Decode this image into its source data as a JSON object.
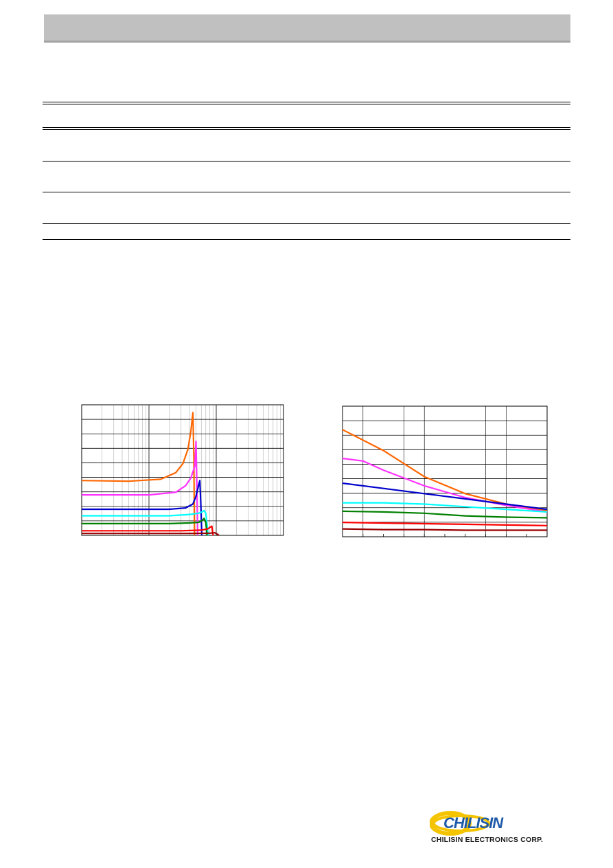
{
  "page": {
    "company_name": "CHILISIN ELECTRONICS CORP.",
    "logo_text": "CHILISIN"
  },
  "chart_data": [
    {
      "type": "line",
      "xscale": "log",
      "grid": true,
      "series": [
        {
          "color": "#ff6600",
          "x": [
            1,
            5,
            15,
            25,
            32,
            38,
            42,
            45,
            46.5,
            47.5
          ],
          "y": [
            0.42,
            0.415,
            0.43,
            0.48,
            0.55,
            0.66,
            0.8,
            0.94,
            0.6,
            0.0
          ]
        },
        {
          "color": "#ff33ff",
          "x": [
            1,
            10,
            25,
            35,
            42,
            48,
            50,
            51.5,
            53
          ],
          "y": [
            0.31,
            0.31,
            0.33,
            0.38,
            0.44,
            0.53,
            0.72,
            0.4,
            0.0
          ]
        },
        {
          "color": "#0000cc",
          "x": [
            1,
            20,
            35,
            45,
            50,
            55,
            57,
            59,
            61
          ],
          "y": [
            0.2,
            0.2,
            0.21,
            0.24,
            0.3,
            0.39,
            0.42,
            0.25,
            0.0
          ]
        },
        {
          "color": "#00ffff",
          "x": [
            1,
            20,
            40,
            55,
            62,
            66,
            70,
            73,
            76
          ],
          "y": [
            0.15,
            0.15,
            0.16,
            0.17,
            0.18,
            0.19,
            0.17,
            0.08,
            0.0
          ]
        },
        {
          "color": "#008000",
          "x": [
            1,
            20,
            40,
            55,
            62,
            66,
            70,
            73
          ],
          "y": [
            0.09,
            0.09,
            0.095,
            0.1,
            0.115,
            0.13,
            0.1,
            0.0
          ]
        },
        {
          "color": "#ff0000",
          "x": [
            1,
            30,
            60,
            75,
            82,
            86,
            88,
            90
          ],
          "y": [
            0.035,
            0.035,
            0.04,
            0.05,
            0.065,
            0.07,
            0.03,
            0.0
          ]
        },
        {
          "color": "#990000",
          "x": [
            1,
            40,
            80,
            95,
            100,
            110
          ],
          "y": [
            0.015,
            0.015,
            0.017,
            0.02,
            0.015,
            0.0
          ]
        }
      ]
    },
    {
      "type": "line",
      "grid": true,
      "series": [
        {
          "color": "#ff6600",
          "x": [
            0,
            2,
            4,
            6,
            8,
            10
          ],
          "y": [
            0.82,
            0.66,
            0.46,
            0.33,
            0.25,
            0.2
          ]
        },
        {
          "color": "#ff33ff",
          "x": [
            0,
            1,
            2,
            4,
            6,
            8,
            10
          ],
          "y": [
            0.6,
            0.58,
            0.51,
            0.39,
            0.3,
            0.24,
            0.19
          ]
        },
        {
          "color": "#0000cc",
          "x": [
            0,
            2,
            4,
            6,
            8,
            10
          ],
          "y": [
            0.41,
            0.37,
            0.33,
            0.29,
            0.25,
            0.21
          ]
        },
        {
          "color": "#00ffff",
          "x": [
            0,
            2,
            4,
            6,
            8,
            10
          ],
          "y": [
            0.26,
            0.26,
            0.25,
            0.23,
            0.21,
            0.19
          ]
        },
        {
          "color": "#008000",
          "x": [
            0,
            2,
            4,
            6,
            8,
            10
          ],
          "y": [
            0.195,
            0.19,
            0.18,
            0.16,
            0.15,
            0.145
          ]
        },
        {
          "color": "#ff0000",
          "x": [
            0,
            2,
            4,
            6,
            8,
            10
          ],
          "y": [
            0.11,
            0.105,
            0.1,
            0.095,
            0.09,
            0.085
          ]
        },
        {
          "color": "#990000",
          "x": [
            0,
            2,
            4,
            6,
            8,
            10
          ],
          "y": [
            0.06,
            0.055,
            0.055,
            0.05,
            0.05,
            0.05
          ]
        }
      ]
    }
  ]
}
